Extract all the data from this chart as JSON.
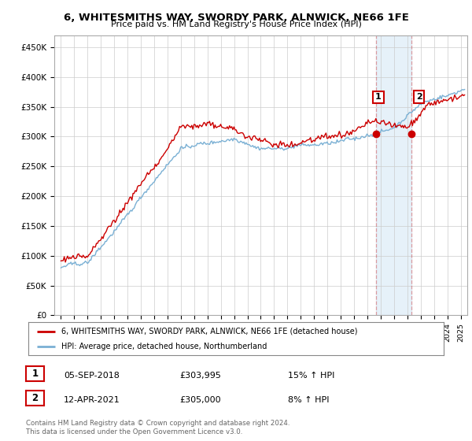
{
  "title": "6, WHITESMITHS WAY, SWORDY PARK, ALNWICK, NE66 1FE",
  "subtitle": "Price paid vs. HM Land Registry's House Price Index (HPI)",
  "ylabel_ticks": [
    "£0",
    "£50K",
    "£100K",
    "£150K",
    "£200K",
    "£250K",
    "£300K",
    "£350K",
    "£400K",
    "£450K"
  ],
  "ytick_vals": [
    0,
    50000,
    100000,
    150000,
    200000,
    250000,
    300000,
    350000,
    400000,
    450000
  ],
  "ylim": [
    0,
    470000
  ],
  "sale1": {
    "date_str": "05-SEP-2018",
    "price": 303995,
    "pct": "15%",
    "label": "1"
  },
  "sale2": {
    "date_str": "12-APR-2021",
    "price": 305000,
    "pct": "8%",
    "label": "2"
  },
  "sale1_x": 2018.67,
  "sale2_x": 2021.28,
  "red_color": "#cc0000",
  "blue_color": "#7ab0d4",
  "vline_color": "#cc0000",
  "vline_alpha": 0.35,
  "bg_band_color": "#d6e8f5",
  "bg_band_alpha": 0.6,
  "legend_label_red": "6, WHITESMITHS WAY, SWORDY PARK, ALNWICK, NE66 1FE (detached house)",
  "legend_label_blue": "HPI: Average price, detached house, Northumberland",
  "footer": "Contains HM Land Registry data © Crown copyright and database right 2024.\nThis data is licensed under the Open Government Licence v3.0.",
  "xlim": [
    1994.5,
    2025.5
  ],
  "title_fontsize": 9.5,
  "subtitle_fontsize": 8.5
}
